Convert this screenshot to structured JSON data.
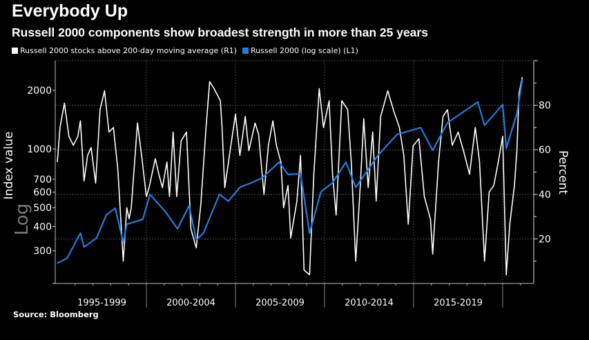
{
  "title": "Everybody Up",
  "subtitle": "Russell 2000 components show broadest strength in more than 25 years",
  "source": "Source: Bloomberg",
  "chart_data": {
    "type": "line",
    "title": "Everybody Up",
    "subtitle": "Russell 2000 components show broadest strength in more than 25 years",
    "x_categories": [
      "1995-1999",
      "2000-2004",
      "2005-2009",
      "2010-2014",
      "2015-2019"
    ],
    "xlim": [
      1995,
      2021.1
    ],
    "left_axis": {
      "label": "Index value",
      "scale_note": "Log",
      "scale": "log",
      "ticks": [
        300,
        400,
        500,
        600,
        700,
        1000,
        2000
      ],
      "ylim": [
        204,
        2840
      ]
    },
    "right_axis": {
      "label": "Percent",
      "ticks": [
        20,
        40,
        60,
        80
      ],
      "ylim": [
        0,
        100
      ]
    },
    "grid": true,
    "legend_position": "top-left",
    "series": [
      {
        "name": "Russell 2000 stocks above 200-day moving average (R1)",
        "axis": "right",
        "color": "#ffffff",
        "x": [
          1995.0,
          1995.15,
          1995.4,
          1995.65,
          1995.9,
          1996.15,
          1996.3,
          1996.5,
          1996.7,
          1996.9,
          1997.15,
          1997.4,
          1997.65,
          1997.9,
          1998.15,
          1998.4,
          1998.7,
          1998.9,
          1999.03,
          1999.15,
          1999.5,
          1999.75,
          2000.0,
          2000.15,
          2000.5,
          2000.7,
          2000.9,
          2001.15,
          2001.3,
          2001.5,
          2001.7,
          2001.95,
          2002.25,
          2002.5,
          2002.8,
          2003.05,
          2003.35,
          2003.55,
          2003.8,
          2004.15,
          2004.25,
          2004.4,
          2004.7,
          2005.0,
          2005.25,
          2005.55,
          2005.75,
          2006.1,
          2006.3,
          2006.6,
          2006.85,
          2007.1,
          2007.3,
          2007.55,
          2007.7,
          2007.95,
          2008.1,
          2008.45,
          2008.65,
          2008.85,
          2009.16,
          2009.4,
          2009.7,
          2009.94,
          2010.26,
          2010.45,
          2010.65,
          2010.97,
          2011.3,
          2011.5,
          2011.75,
          2012.0,
          2012.2,
          2012.45,
          2012.7,
          2012.9,
          2013.15,
          2013.55,
          2013.9,
          2014.2,
          2014.45,
          2014.7,
          2014.97,
          2015.3,
          2015.6,
          2015.95,
          2016.07,
          2016.4,
          2016.65,
          2016.9,
          2017.17,
          2017.5,
          2017.8,
          2018.14,
          2018.46,
          2018.7,
          2018.98,
          2019.24,
          2019.5,
          2019.75,
          2020.0,
          2020.2,
          2020.4,
          2020.66,
          2020.8,
          2020.92,
          2021.1
        ],
        "y": [
          54.5,
          70,
          81,
          66,
          62,
          66,
          73,
          46,
          57.5,
          61,
          45,
          78,
          86.5,
          68,
          70,
          51,
          10,
          34,
          29,
          34,
          72,
          56,
          39,
          43,
          56,
          49,
          43,
          54.5,
          39,
          68,
          39,
          64,
          68,
          24.5,
          16,
          35,
          70,
          90.6,
          87.5,
          82,
          70,
          43,
          59.6,
          76,
          57.5,
          75,
          59.6,
          72,
          67,
          40,
          62,
          73,
          62,
          54.5,
          34,
          44,
          20.4,
          37,
          57.5,
          6,
          3.9,
          49,
          87.5,
          70,
          82,
          49,
          30.7,
          82,
          78,
          54.5,
          10,
          43,
          74,
          43,
          68,
          37,
          75,
          86.5,
          77,
          70,
          57.5,
          26.6,
          61.7,
          65,
          39,
          28.7,
          13.2,
          54.5,
          75,
          78,
          62,
          68,
          59.6,
          49,
          70,
          54.5,
          10,
          41,
          44,
          54.5,
          66,
          3.9,
          26.6,
          44,
          59.6,
          85.4,
          92.6
        ]
      },
      {
        "name": "Russell 2000 (log scale) (L1)",
        "axis": "left",
        "color": "#1f7fe0",
        "x": [
          1995.0,
          1995.55,
          1996.3,
          1996.5,
          1997.2,
          1997.75,
          1998.25,
          1998.7,
          1998.9,
          1999.8,
          2000.2,
          2001.1,
          2001.75,
          2002.4,
          2002.8,
          2003.2,
          2004.1,
          2004.6,
          2005.25,
          2005.9,
          2006.5,
          2007.45,
          2007.95,
          2008.65,
          2009.16,
          2009.8,
          2010.45,
          2011.2,
          2011.75,
          2013.0,
          2014.07,
          2015.4,
          2016.07,
          2016.9,
          2018.6,
          2018.98,
          2020.0,
          2020.2,
          2020.8,
          2021.1
        ],
        "y": [
          259,
          275,
          370,
          314,
          349,
          458,
          497,
          330,
          411,
          435,
          585,
          472,
          389,
          512,
          341,
          370,
          585,
          539,
          635,
          671,
          710,
          856,
          740,
          747,
          370,
          603,
          671,
          856,
          635,
          929,
          1187,
          1288,
          984,
          1364,
          1742,
          1323,
          1689,
          1008,
          1516,
          2279
        ]
      }
    ]
  }
}
